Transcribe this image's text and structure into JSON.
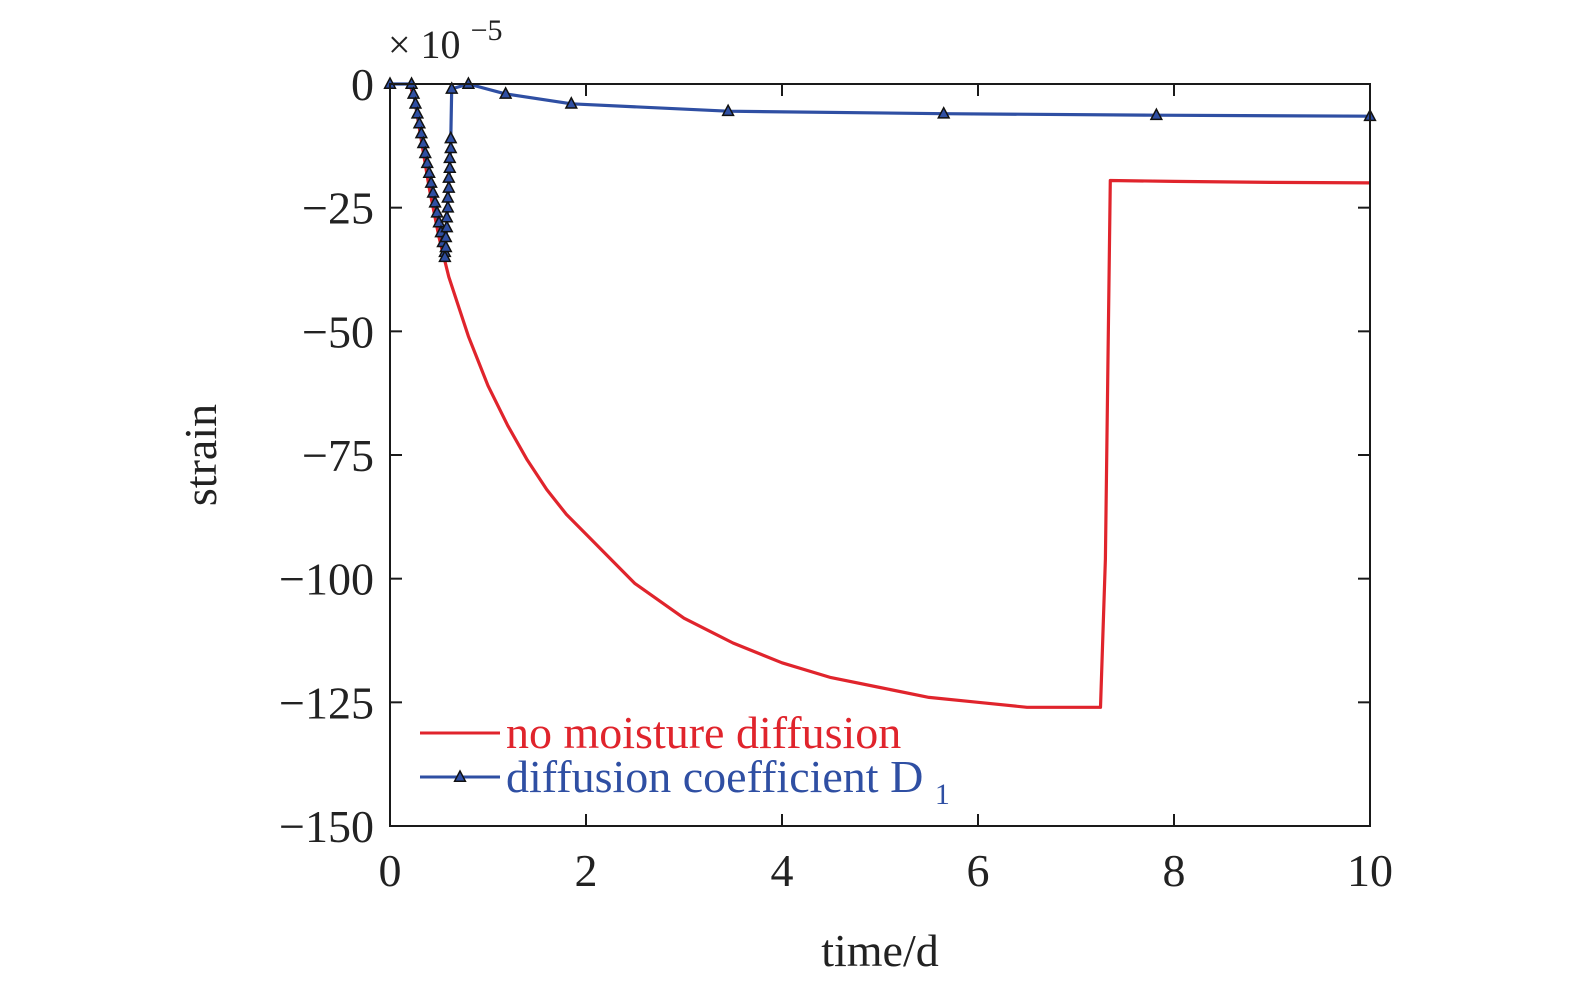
{
  "chart_data": {
    "type": "line",
    "xlabel": "time/d",
    "ylabel": "strain",
    "y_multiplier": "× 10",
    "y_multiplier_exp": "−5",
    "xlim": [
      0,
      10
    ],
    "ylim": [
      -150,
      0
    ],
    "x_ticks": [
      0,
      2,
      4,
      6,
      8,
      10
    ],
    "x_tick_labels": [
      "0",
      "2",
      "4",
      "6",
      "8",
      "10"
    ],
    "y_ticks": [
      0,
      -25,
      -50,
      -75,
      -100,
      -125,
      -150
    ],
    "y_tick_labels": [
      "0",
      "−25",
      "−50",
      "−75",
      "−100",
      "−125",
      "−150"
    ],
    "grid": false,
    "legend_position": "bottom-left",
    "series": [
      {
        "name": "no moisture diffusion",
        "color": "#e0242c",
        "marker": "none",
        "x": [
          0.2,
          0.25,
          0.3,
          0.35,
          0.4,
          0.45,
          0.5,
          0.55,
          0.6,
          0.7,
          0.8,
          0.9,
          1.0,
          1.2,
          1.4,
          1.6,
          1.8,
          2.0,
          2.5,
          3.0,
          3.5,
          4.0,
          4.5,
          5.0,
          5.5,
          6.0,
          6.5,
          7.0,
          7.2,
          7.25,
          7.3,
          7.35,
          8.0,
          9.0,
          10.0
        ],
        "y": [
          0,
          -3,
          -9,
          -15,
          -21,
          -26,
          -31,
          -35,
          -39,
          -45,
          -51,
          -56,
          -61,
          -69,
          -76,
          -82,
          -87,
          -91,
          -101,
          -108,
          -113,
          -117,
          -120,
          -122,
          -124,
          -125,
          -126,
          -126,
          -126,
          -126,
          -96,
          -19.5,
          -19.7,
          -19.9,
          -20
        ]
      },
      {
        "name": "diffusion coefficient D",
        "name_subscript": "1",
        "color": "#2f4fa3",
        "marker": "triangle",
        "x": [
          0,
          0.22,
          0.24,
          0.26,
          0.28,
          0.3,
          0.32,
          0.34,
          0.36,
          0.38,
          0.4,
          0.42,
          0.44,
          0.46,
          0.48,
          0.5,
          0.52,
          0.54,
          0.56,
          0.56,
          0.57,
          0.57,
          0.58,
          0.58,
          0.59,
          0.59,
          0.6,
          0.6,
          0.61,
          0.61,
          0.62,
          0.62,
          0.63,
          0.8,
          1.18,
          1.85,
          3.45,
          5.65,
          7.82,
          10.0
        ],
        "y": [
          0,
          0,
          -2,
          -4,
          -6,
          -8,
          -10,
          -12,
          -14,
          -16,
          -18,
          -20,
          -22,
          -24,
          -26,
          -28,
          -30,
          -32,
          -34,
          -35,
          -33,
          -31,
          -29,
          -27,
          -25,
          -23,
          -21,
          -19,
          -17,
          -15,
          -13,
          -11,
          -1,
          0,
          -2,
          -4,
          -5.5,
          -6,
          -6.3,
          -6.5
        ]
      }
    ]
  }
}
